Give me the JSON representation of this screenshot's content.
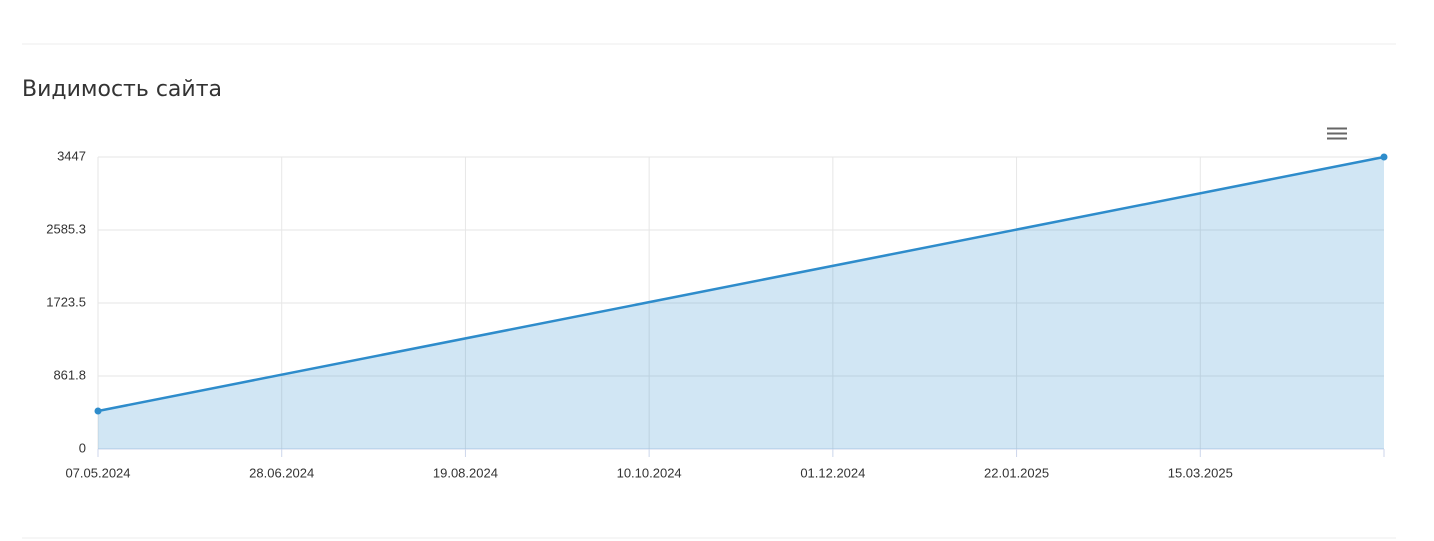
{
  "chart_data": {
    "type": "area",
    "title": "Видимость сайта",
    "x": [
      "2024-05-07",
      "2025-05-06"
    ],
    "series": [
      {
        "name": null,
        "color": "#2e8ccb",
        "values": [
          449,
          3447
        ]
      }
    ],
    "xlim": [
      "2024-05-07",
      "2025-05-06"
    ],
    "xticks": [
      {
        "value": "2024-05-07",
        "label": "07.05.2024"
      },
      {
        "value": "2024-06-28",
        "label": "28.06.2024"
      },
      {
        "value": "2024-08-19",
        "label": "19.08.2024"
      },
      {
        "value": "2024-10-10",
        "label": "10.10.2024"
      },
      {
        "value": "2024-12-01",
        "label": "01.12.2024"
      },
      {
        "value": "2025-01-22",
        "label": "22.01.2025"
      },
      {
        "value": "2025-03-15",
        "label": "15.03.2025"
      }
    ],
    "ylim": [
      0,
      3447
    ],
    "yticks": [
      0,
      861.8,
      1723.5,
      2585.3,
      3447
    ],
    "grid": true
  }
}
